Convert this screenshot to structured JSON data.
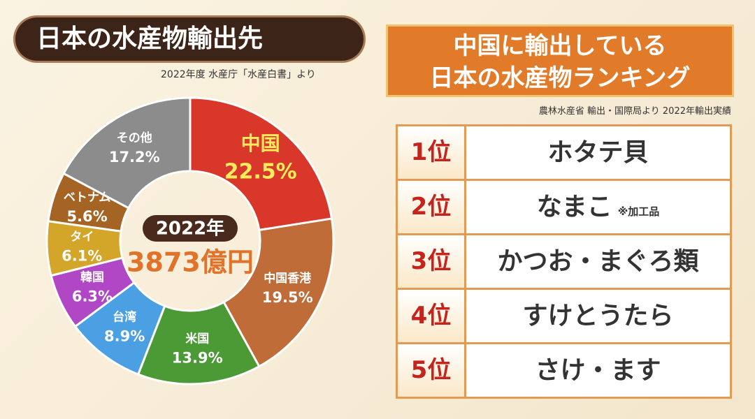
{
  "chart_data": {
    "type": "donut",
    "title": "日本の水産物輸出先",
    "subtitle": "2022年度 水産庁「水産白書」より",
    "center_label": "2022年",
    "center_value": "3873億円",
    "categories": [
      "中国",
      "中国香港",
      "米国",
      "台湾",
      "韓国",
      "タイ",
      "ベトナム",
      "その他"
    ],
    "values": [
      22.5,
      19.5,
      13.9,
      8.9,
      6.3,
      6.1,
      5.6,
      17.2
    ],
    "value_labels": [
      "22.5%",
      "19.5%",
      "13.9%",
      "8.9%",
      "6.3%",
      "6.1%",
      "5.6%",
      "17.2%"
    ],
    "colors": [
      "#d9372a",
      "#c06c38",
      "#4b9a36",
      "#4aa0e2",
      "#b048c6",
      "#d3a629",
      "#a56424",
      "#8c8c8c"
    ]
  },
  "ranking": {
    "title": [
      "中国に輸出している",
      "日本の水産物ランキング"
    ],
    "source": "農林水産省 輸出・国際局より 2022年輸出実績",
    "rows": [
      {
        "rank": "1位",
        "name": "ホタテ貝"
      },
      {
        "rank": "2位",
        "name": "なまこ",
        "note": "※加工品"
      },
      {
        "rank": "3位",
        "name": "かつお・まぐろ類"
      },
      {
        "rank": "4位",
        "name": "すけとうたら"
      },
      {
        "rank": "5位",
        "name": "さけ・ます"
      }
    ]
  }
}
